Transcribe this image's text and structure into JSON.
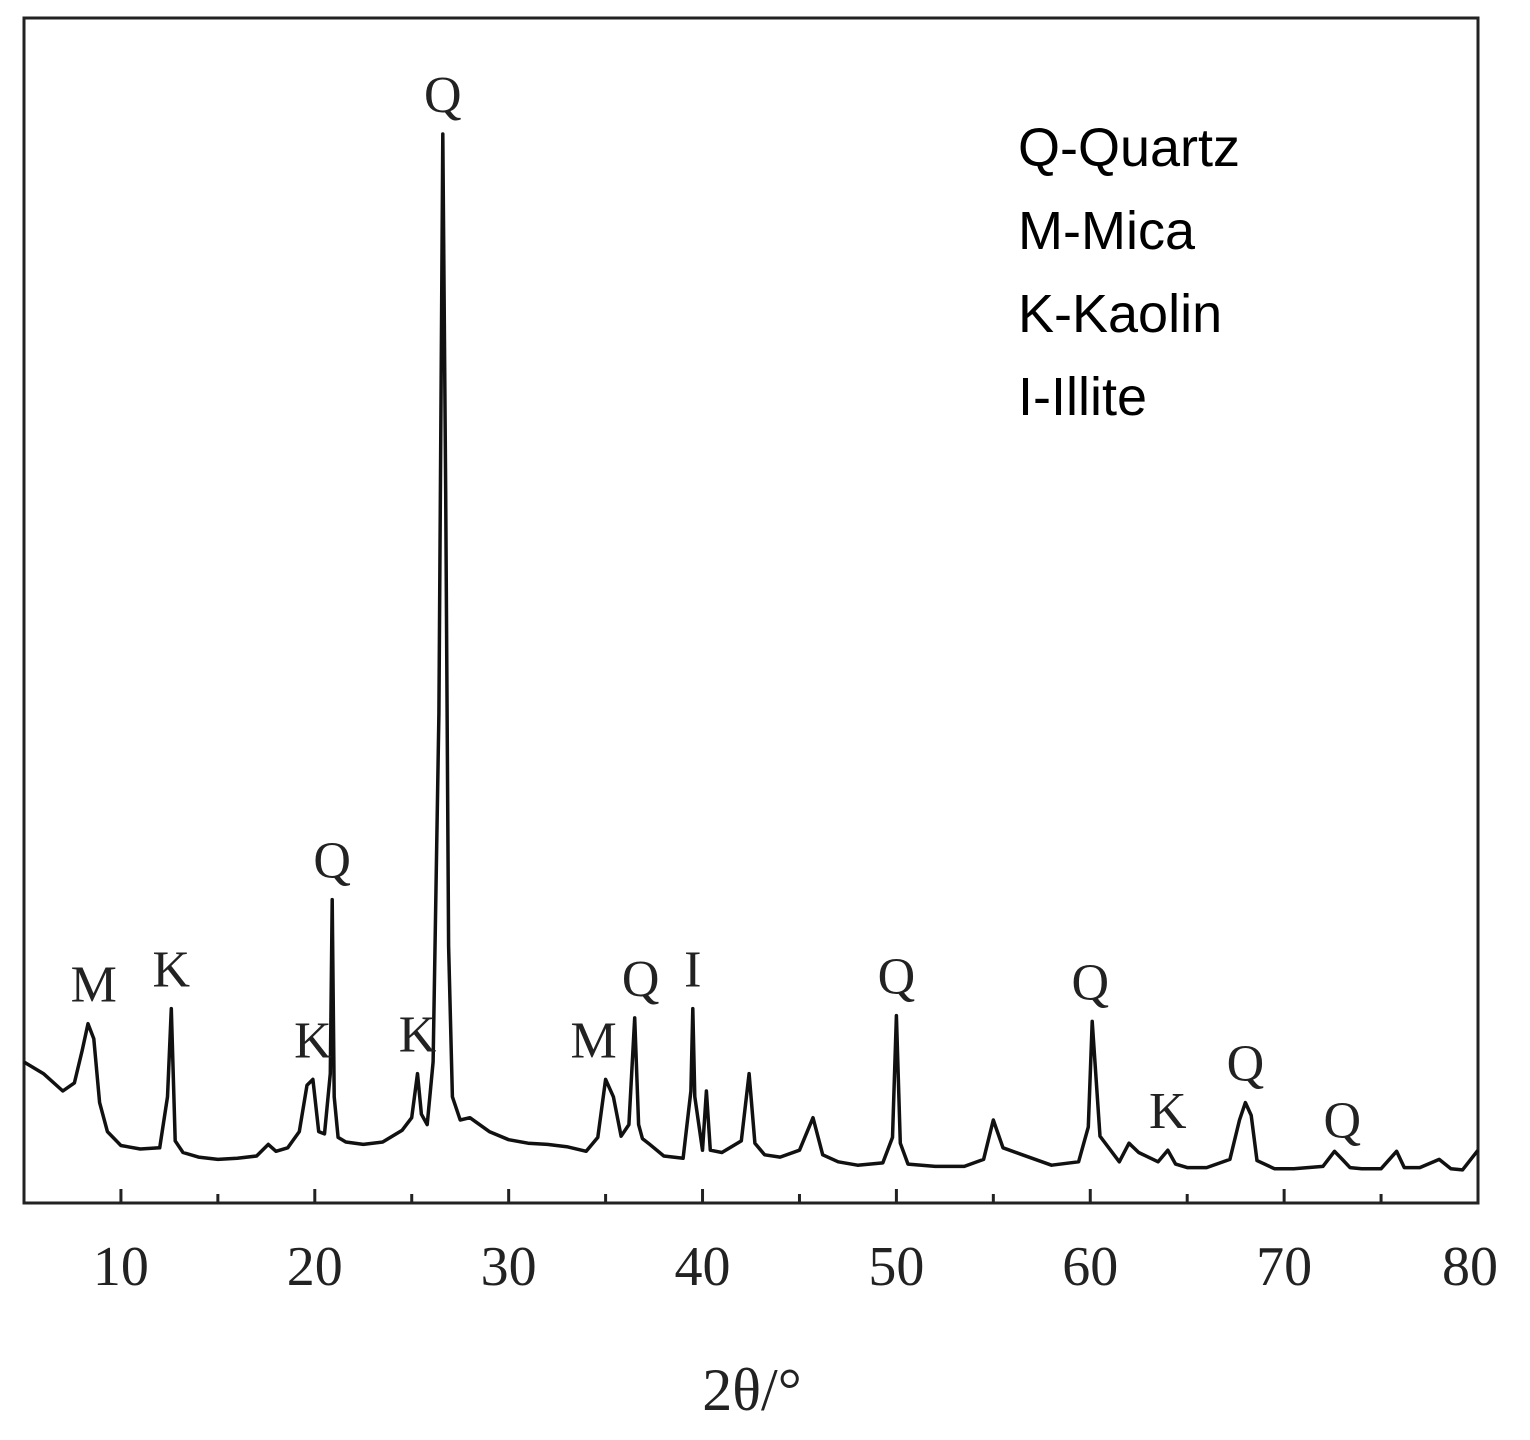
{
  "chart_data": {
    "type": "line",
    "title": "",
    "xlabel": "2θ/°",
    "ylabel": "",
    "xlim": [
      5,
      80
    ],
    "xticks": [
      10,
      20,
      30,
      40,
      50,
      60,
      70,
      80
    ],
    "grid": false,
    "legend": {
      "placement": "top-right",
      "entries": [
        "Q-Quartz",
        "M-Mica",
        "K-Kaolin",
        "I-Illite"
      ]
    },
    "series": [
      {
        "values_note_free": true,
        "x": [
          5,
          6,
          7,
          7.6,
          8.0,
          8.3,
          8.6,
          8.9,
          9.3,
          10,
          11,
          12,
          12.4,
          12.6,
          12.8,
          13.2,
          14,
          15,
          16,
          17,
          17.6,
          18,
          18.6,
          19.2,
          19.6,
          19.9,
          20.2,
          20.5,
          20.8,
          20.9,
          21.0,
          21.2,
          21.6,
          22.5,
          23.5,
          24.5,
          25.0,
          25.3,
          25.5,
          25.8,
          26.1,
          26.4,
          26.6,
          26.75,
          26.9,
          27.1,
          27.5,
          28,
          29,
          30,
          31,
          32,
          33,
          34,
          34.6,
          35.0,
          35.4,
          35.8,
          36.2,
          36.5,
          36.7,
          36.9,
          37.2,
          38,
          39.0,
          39.4,
          39.5,
          39.6,
          40.0,
          40.2,
          40.4,
          41,
          42,
          42.4,
          42.7,
          43.2,
          44,
          45,
          45.7,
          46.2,
          47,
          48,
          49.3,
          49.8,
          50.0,
          50.2,
          50.6,
          52,
          53.5,
          54.5,
          55.0,
          55.5,
          56.5,
          58,
          59.4,
          59.9,
          60.1,
          60.5,
          61.5,
          62.0,
          62.5,
          63.5,
          64.0,
          64.4,
          65,
          66,
          67.2,
          67.7,
          68.0,
          68.3,
          68.6,
          69.5,
          70.5,
          72,
          72.6,
          73.0,
          73.4,
          74,
          75,
          75.8,
          76.2,
          77,
          78,
          78.6,
          79.2,
          80
        ],
        "y": [
          10.0,
          9.0,
          7.5,
          8.2,
          11.0,
          13.3,
          12.0,
          6.5,
          4.0,
          2.8,
          2.5,
          2.6,
          7.0,
          14.6,
          3.2,
          2.2,
          1.8,
          1.6,
          1.7,
          1.9,
          2.9,
          2.3,
          2.6,
          4.0,
          8.0,
          8.5,
          4.0,
          3.8,
          9.0,
          24.0,
          7.0,
          3.5,
          3.1,
          2.9,
          3.1,
          4.1,
          5.2,
          9.0,
          5.5,
          4.6,
          10.0,
          40.0,
          90.0,
          59.0,
          20.0,
          7.0,
          5.0,
          5.2,
          4.0,
          3.3,
          3.0,
          2.9,
          2.7,
          2.3,
          3.5,
          8.5,
          7.0,
          3.6,
          4.6,
          13.8,
          4.6,
          3.4,
          3.0,
          1.9,
          1.7,
          7.5,
          14.6,
          7.0,
          2.4,
          7.5,
          2.4,
          2.2,
          3.2,
          9.0,
          3.0,
          2.0,
          1.8,
          2.4,
          5.2,
          2.0,
          1.4,
          1.1,
          1.3,
          3.5,
          14.0,
          3.0,
          1.2,
          1.0,
          1.0,
          1.6,
          5.0,
          2.6,
          2.0,
          1.1,
          1.4,
          4.4,
          13.5,
          3.6,
          1.4,
          3.0,
          2.2,
          1.4,
          2.4,
          1.2,
          0.9,
          0.9,
          1.6,
          5.0,
          6.5,
          5.4,
          1.5,
          0.8,
          0.8,
          1.0,
          2.3,
          1.6,
          0.9,
          0.8,
          0.8,
          2.3,
          0.9,
          0.9,
          1.6,
          0.8,
          0.7,
          2.4
        ]
      }
    ],
    "peak_labels": [
      {
        "text": "M",
        "x": 8.6
      },
      {
        "text": "K",
        "x": 12.6
      },
      {
        "text": "K",
        "x": 19.9
      },
      {
        "text": "Q",
        "x": 20.9
      },
      {
        "text": "K",
        "x": 25.3
      },
      {
        "text": "Q",
        "x": 26.6
      },
      {
        "text": "M",
        "x": 35.0
      },
      {
        "text": "Q",
        "x": 36.5
      },
      {
        "text": "I",
        "x": 39.5
      },
      {
        "text": "Q",
        "x": 50.0
      },
      {
        "text": "Q",
        "x": 60.0
      },
      {
        "text": "K",
        "x": 64.0
      },
      {
        "text": "Q",
        "x": 68.0
      },
      {
        "text": "Q",
        "x": 73.0
      }
    ]
  }
}
